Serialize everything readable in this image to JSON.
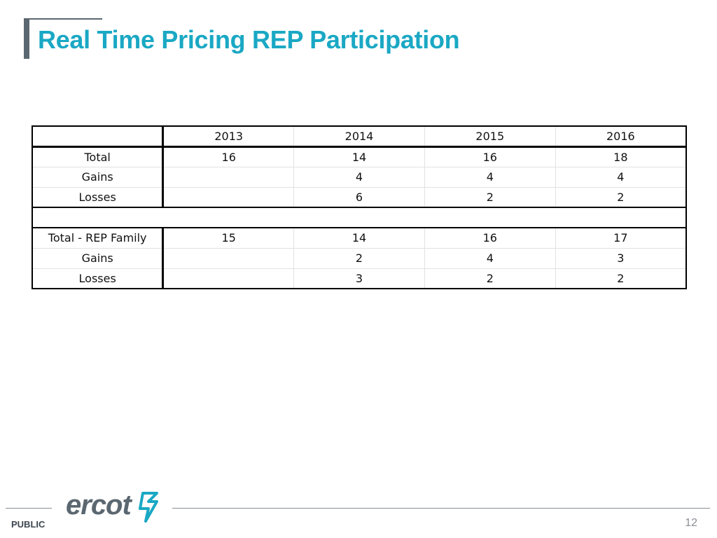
{
  "slide": {
    "title": "Real Time Pricing REP Participation",
    "footer_label": "PUBLIC",
    "page_number": "12",
    "logo_text": "ercot"
  },
  "table": {
    "years": [
      "2013",
      "2014",
      "2015",
      "2016"
    ],
    "group1": [
      {
        "label": "Total",
        "values": [
          "16",
          "14",
          "16",
          "18"
        ]
      },
      {
        "label": "Gains",
        "values": [
          "",
          "4",
          "4",
          "4"
        ]
      },
      {
        "label": "Losses",
        "values": [
          "",
          "6",
          "2",
          "2"
        ]
      }
    ],
    "group2": [
      {
        "label": "Total - REP Family",
        "values": [
          "15",
          "14",
          "16",
          "17"
        ]
      },
      {
        "label": "Gains",
        "values": [
          "",
          "2",
          "4",
          "3"
        ]
      },
      {
        "label": "Losses",
        "values": [
          "",
          "3",
          "2",
          "2"
        ]
      }
    ]
  },
  "colors": {
    "title": "#1aa8c4",
    "accent_gray": "#5b6770",
    "logo_mark": "#1aa8c4"
  }
}
